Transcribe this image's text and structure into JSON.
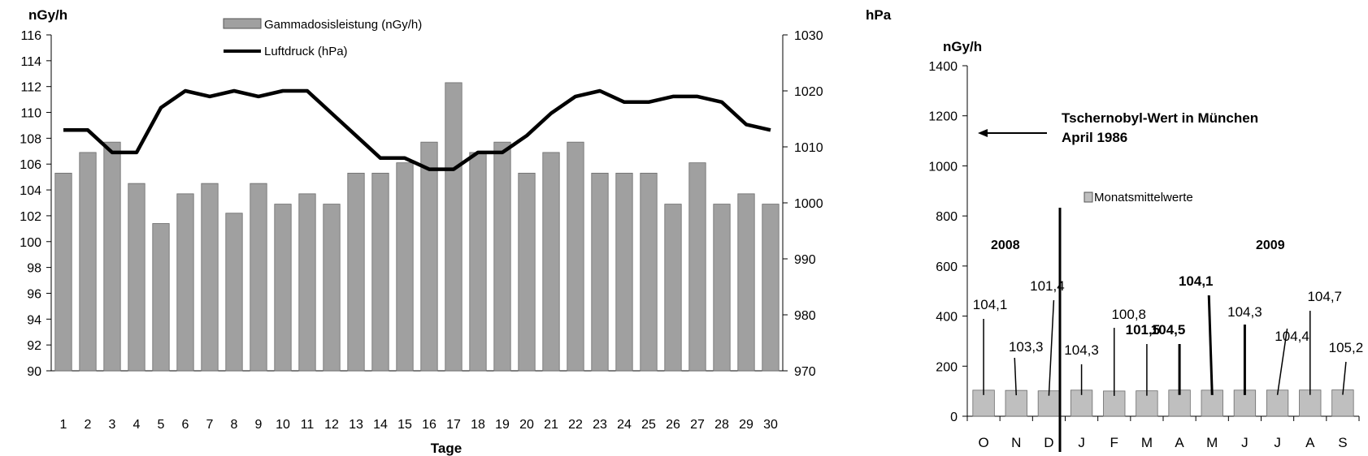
{
  "chart_data": [
    {
      "type": "bar",
      "y_left_unit": "nGy/h",
      "y_right_unit": "hPa",
      "xlabel": "Tage",
      "ylim_left": [
        90,
        116
      ],
      "ylim_right": [
        970,
        1030
      ],
      "yticks_left": [
        "90",
        "92",
        "94",
        "96",
        "98",
        "100",
        "102",
        "104",
        "106",
        "108",
        "110",
        "112",
        "114",
        "116"
      ],
      "yticks_right": [
        "970",
        "980",
        "990",
        "1000",
        "1010",
        "1020",
        "1030"
      ],
      "categories": [
        "1",
        "2",
        "3",
        "4",
        "5",
        "6",
        "7",
        "8",
        "9",
        "10",
        "11",
        "12",
        "13",
        "14",
        "15",
        "16",
        "17",
        "18",
        "19",
        "20",
        "21",
        "22",
        "23",
        "24",
        "25",
        "26",
        "27",
        "28",
        "29",
        "30"
      ],
      "series": [
        {
          "name": "Gammadosisleistung (nGy/h)",
          "type": "bar",
          "axis": "left",
          "color": "#a0a0a0",
          "values": [
            105.3,
            106.9,
            107.7,
            104.5,
            101.4,
            103.7,
            104.5,
            102.2,
            104.5,
            102.9,
            103.7,
            102.9,
            105.3,
            105.3,
            106.1,
            107.7,
            112.3,
            106.9,
            107.7,
            105.3,
            106.9,
            107.7,
            105.3,
            105.3,
            105.3,
            102.9,
            106.1,
            102.9,
            103.7,
            102.9
          ]
        },
        {
          "name": "Luftdruck (hPa)",
          "type": "line",
          "axis": "right",
          "color": "#000000",
          "values": [
            1013,
            1013,
            1009,
            1009,
            1017,
            1020,
            1019,
            1020,
            1019,
            1020,
            1020,
            1016,
            1012,
            1008,
            1008,
            1006,
            1006,
            1009,
            1009,
            1012,
            1016,
            1019,
            1020,
            1018,
            1018,
            1019,
            1019,
            1018,
            1014,
            1013
          ]
        }
      ]
    },
    {
      "type": "bar",
      "y_unit": "nGy/h",
      "ylim": [
        0,
        1400
      ],
      "yticks": [
        "0",
        "200",
        "400",
        "600",
        "800",
        "1000",
        "1200",
        "1400"
      ],
      "categories": [
        "O",
        "N",
        "D",
        "J",
        "F",
        "M",
        "A",
        "M",
        "J",
        "J",
        "A",
        "S"
      ],
      "series": [
        {
          "name": "Monatsmittelwerte",
          "color": "#bfbfbf",
          "values": [
            104.1,
            103.3,
            101.4,
            104.3,
            100.8,
            101.5,
            104.5,
            104.1,
            104.3,
            104.4,
            104.7,
            105.2
          ]
        }
      ],
      "data_labels": [
        "104,1",
        "103,3",
        "101,4",
        "104,3",
        "100,8",
        "101,5",
        "104,5",
        "104,1",
        "104,3",
        "104,4",
        "104,7",
        "105,2"
      ],
      "year_labels": {
        "left": "2008",
        "right": "2009"
      },
      "annotation": {
        "line1": "Tschernobyl-Wert in München",
        "line2": "April 1986"
      }
    }
  ]
}
